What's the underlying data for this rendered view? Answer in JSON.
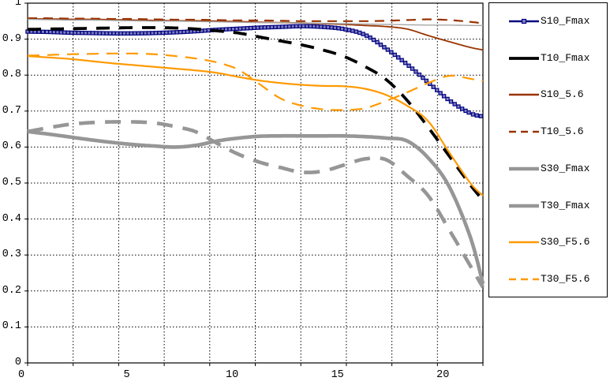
{
  "figure": {
    "background_color": "#FFFFFF",
    "plot_border_color": "#000000",
    "gridline_color": "#000000",
    "gridline_style": "dashed",
    "legend_border_color": "#000000",
    "legend_background_color": "#FFFFFF"
  },
  "chart_data": {
    "type": "line",
    "title": "",
    "xlabel": "",
    "ylabel": "",
    "xlim": [
      0,
      21.6
    ],
    "ylim": [
      0,
      1
    ],
    "x_divisions": 10,
    "grid": true,
    "legend_position": "right",
    "x_tick_values": [
      0,
      5,
      10,
      15,
      20
    ],
    "x_tick_labels": [
      "0",
      "5",
      "10",
      "15",
      "20"
    ],
    "y_tick_values": [
      1,
      0.9,
      0.8,
      0.7,
      0.6,
      0.5,
      0.4,
      0.3,
      0.2,
      0.1,
      0
    ],
    "y_tick_labels": [
      "1",
      "0.9",
      "0.8",
      "0.7",
      "0.6",
      "0.5",
      "0.4",
      "0.3",
      "0.2",
      "0.1",
      "0"
    ],
    "x": [
      0,
      1,
      2,
      3,
      4,
      5,
      6,
      7,
      8,
      9,
      10,
      11,
      12,
      13,
      14,
      15,
      16,
      17,
      18,
      19,
      20,
      21,
      21.6
    ],
    "series": [
      {
        "name": "S10_Fmax",
        "color": "#000080",
        "marker_fill": "#8080C0",
        "style": "solid",
        "width": 1.6,
        "marker": "square",
        "in_legend": true,
        "legend_dashed": false,
        "values": [
          0.921,
          0.92,
          0.918,
          0.917,
          0.916,
          0.916,
          0.917,
          0.919,
          0.922,
          0.926,
          0.929,
          0.932,
          0.934,
          0.936,
          0.934,
          0.928,
          0.912,
          0.874,
          0.83,
          0.78,
          0.73,
          0.694,
          0.685
        ]
      },
      {
        "name": "T10_Fmax",
        "color": "#000000",
        "style": "dashed",
        "dash": [
          17,
          12
        ],
        "width": 3.8,
        "in_legend": true,
        "legend_dashed": false,
        "values": [
          0.927,
          0.928,
          0.929,
          0.93,
          0.931,
          0.932,
          0.932,
          0.931,
          0.928,
          0.923,
          0.917,
          0.906,
          0.895,
          0.884,
          0.87,
          0.852,
          0.824,
          0.788,
          0.73,
          0.655,
          0.575,
          0.495,
          0.452
        ]
      },
      {
        "name": "S10_5.6",
        "color": "#993300",
        "style": "solid",
        "width": 1.8,
        "in_legend": true,
        "legend_dashed": false,
        "values": [
          0.956,
          0.956,
          0.955,
          0.955,
          0.954,
          0.953,
          0.952,
          0.951,
          0.951,
          0.95,
          0.949,
          0.947,
          0.946,
          0.945,
          0.943,
          0.941,
          0.938,
          0.935,
          0.928,
          0.91,
          0.893,
          0.877,
          0.87
        ]
      },
      {
        "name": "T10_5.6",
        "color": "#993300",
        "style": "dashed",
        "dash": [
          12,
          8
        ],
        "width": 2.2,
        "in_legend": true,
        "legend_dashed": true,
        "values": [
          0.958,
          0.958,
          0.957,
          0.957,
          0.956,
          0.956,
          0.955,
          0.954,
          0.954,
          0.953,
          0.952,
          0.952,
          0.951,
          0.95,
          0.95,
          0.95,
          0.95,
          0.951,
          0.953,
          0.955,
          0.953,
          0.948,
          0.944
        ]
      },
      {
        "name": "S30_Fmax",
        "color": "#969696",
        "style": "solid",
        "width": 4.6,
        "in_legend": true,
        "legend_dashed": false,
        "values": [
          0.643,
          0.636,
          0.628,
          0.62,
          0.613,
          0.607,
          0.603,
          0.6,
          0.605,
          0.617,
          0.625,
          0.63,
          0.631,
          0.631,
          0.631,
          0.631,
          0.629,
          0.625,
          0.617,
          0.57,
          0.49,
          0.35,
          0.22
        ]
      },
      {
        "name": "T30_Fmax",
        "color": "#969696",
        "style": "dashed",
        "dash": [
          20,
          13
        ],
        "width": 4.6,
        "in_legend": true,
        "legend_dashed": false,
        "values": [
          0.643,
          0.654,
          0.663,
          0.668,
          0.67,
          0.67,
          0.667,
          0.657,
          0.642,
          0.61,
          0.58,
          0.558,
          0.543,
          0.53,
          0.533,
          0.55,
          0.567,
          0.565,
          0.52,
          0.465,
          0.37,
          0.27,
          0.21
        ]
      },
      {
        "name": "S30_F5.6",
        "color": "#FF9900",
        "style": "solid",
        "width": 2.2,
        "in_legend": true,
        "legend_dashed": false,
        "values": [
          0.853,
          0.849,
          0.845,
          0.839,
          0.833,
          0.828,
          0.823,
          0.818,
          0.813,
          0.806,
          0.795,
          0.785,
          0.778,
          0.773,
          0.77,
          0.769,
          0.762,
          0.745,
          0.715,
          0.672,
          0.585,
          0.5,
          0.465
        ]
      },
      {
        "name": "T30_F5.6",
        "color": "#FF9900",
        "style": "dashed",
        "dash": [
          15,
          10
        ],
        "width": 2.2,
        "in_legend": true,
        "legend_dashed": true,
        "values": [
          0.854,
          0.856,
          0.858,
          0.859,
          0.86,
          0.86,
          0.858,
          0.853,
          0.846,
          0.835,
          0.815,
          0.775,
          0.735,
          0.715,
          0.705,
          0.703,
          0.708,
          0.728,
          0.752,
          0.778,
          0.798,
          0.79,
          0.783
        ]
      },
      {
        "name": "unlabeled-thin-gray-line",
        "color": "#A6A6A6",
        "style": "solid",
        "width": 1.4,
        "in_legend": false,
        "legend_dashed": false,
        "values": [
          0.955,
          0.954,
          0.953,
          0.953,
          0.952,
          0.951,
          0.95,
          0.95,
          0.949,
          0.948,
          0.947,
          0.946,
          0.946,
          0.945,
          0.944,
          0.943,
          0.942,
          0.941,
          0.94,
          0.939,
          0.939,
          0.938,
          0.938
        ]
      }
    ],
    "legend_entries": [
      "S10_Fmax",
      "T10_Fmax",
      "S10_5.6",
      "T10_5.6",
      "S30_Fmax",
      "T30_Fmax",
      "S30_F5.6",
      "T30_F5.6"
    ]
  }
}
